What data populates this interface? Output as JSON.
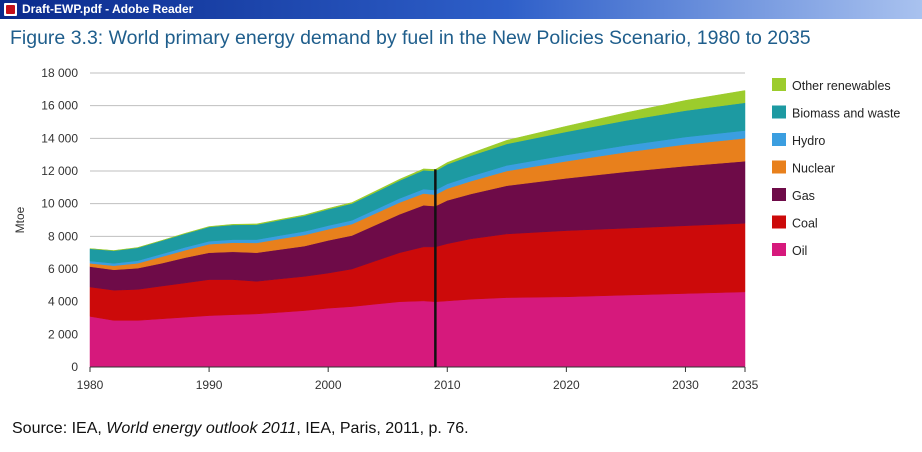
{
  "window": {
    "title": "Draft-EWP.pdf - Adobe Reader",
    "icon": "pdf-document-icon"
  },
  "figure": {
    "title": "Figure 3.3: World primary energy demand by fuel in the New Policies Scenario, 1980 to 2035"
  },
  "source": {
    "prefix": "Source: IEA, ",
    "work": "World energy outlook 2011",
    "suffix": ", IEA, Paris, 2011, p. 76."
  },
  "chart_data": {
    "type": "area",
    "stacked": true,
    "title": "World primary energy demand by fuel in the New Policies Scenario, 1980 to 2035",
    "xlabel": "",
    "ylabel": "Mtoe",
    "xlim": [
      1980,
      2035
    ],
    "ylim": [
      0,
      18000
    ],
    "x_ticks": [
      1980,
      1990,
      2000,
      2010,
      2020,
      2030,
      2035
    ],
    "x_tick_labels": [
      "1980",
      "1990",
      "2000",
      "2010",
      "2020",
      "2030",
      "2035"
    ],
    "y_ticks": [
      0,
      2000,
      4000,
      6000,
      8000,
      10000,
      12000,
      14000,
      16000,
      18000
    ],
    "y_tick_labels": [
      "0",
      "2 000",
      "4 000",
      "6 000",
      "8 000",
      "10 000",
      "12 000",
      "14 000",
      "16 000",
      "18 000"
    ],
    "grid": "horizontal",
    "legend_position": "right",
    "divider_year": 2009,
    "x": [
      1980,
      1982,
      1984,
      1986,
      1988,
      1990,
      1992,
      1994,
      1996,
      1998,
      2000,
      2002,
      2004,
      2006,
      2008,
      2009,
      2010,
      2012,
      2015,
      2020,
      2025,
      2030,
      2035
    ],
    "series": [
      {
        "name": "Oil",
        "color": "#d6197c",
        "values": [
          3100,
          2850,
          2850,
          2950,
          3050,
          3150,
          3200,
          3250,
          3350,
          3450,
          3600,
          3700,
          3850,
          4000,
          4050,
          4000,
          4050,
          4150,
          4250,
          4300,
          4400,
          4500,
          4600
        ]
      },
      {
        "name": "Coal",
        "color": "#cc0a0a",
        "values": [
          1800,
          1850,
          1900,
          2000,
          2100,
          2200,
          2150,
          2000,
          2050,
          2100,
          2150,
          2300,
          2650,
          3000,
          3300,
          3350,
          3500,
          3700,
          3900,
          4050,
          4100,
          4150,
          4200
        ]
      },
      {
        "name": "Gas",
        "color": "#6e0b48",
        "values": [
          1250,
          1250,
          1300,
          1400,
          1550,
          1650,
          1700,
          1750,
          1800,
          1850,
          2000,
          2050,
          2200,
          2350,
          2550,
          2500,
          2650,
          2750,
          2950,
          3200,
          3450,
          3650,
          3800
        ]
      },
      {
        "name": "Nuclear",
        "color": "#e8801c",
        "values": [
          200,
          250,
          300,
          400,
          450,
          520,
          560,
          600,
          650,
          680,
          680,
          700,
          710,
          720,
          720,
          700,
          720,
          780,
          900,
          1050,
          1200,
          1330,
          1400
        ]
      },
      {
        "name": "Hydro",
        "color": "#3b9ee0",
        "values": [
          140,
          150,
          160,
          170,
          180,
          185,
          190,
          200,
          210,
          220,
          225,
          230,
          240,
          250,
          270,
          280,
          290,
          310,
          340,
          380,
          420,
          450,
          480
        ]
      },
      {
        "name": "Biomass and waste",
        "color": "#1d9aa2",
        "values": [
          750,
          770,
          790,
          810,
          840,
          870,
          900,
          920,
          940,
          960,
          1000,
          1030,
          1060,
          1100,
          1150,
          1170,
          1200,
          1250,
          1320,
          1420,
          1520,
          1620,
          1700
        ]
      },
      {
        "name": "Other renewables",
        "color": "#9ccc2c",
        "values": [
          10,
          10,
          15,
          15,
          20,
          30,
          35,
          40,
          45,
          50,
          55,
          60,
          70,
          80,
          90,
          100,
          110,
          150,
          220,
          340,
          480,
          620,
          750
        ]
      }
    ],
    "legend_order": [
      "Other renewables",
      "Biomass and waste",
      "Hydro",
      "Nuclear",
      "Gas",
      "Coal",
      "Oil"
    ]
  }
}
